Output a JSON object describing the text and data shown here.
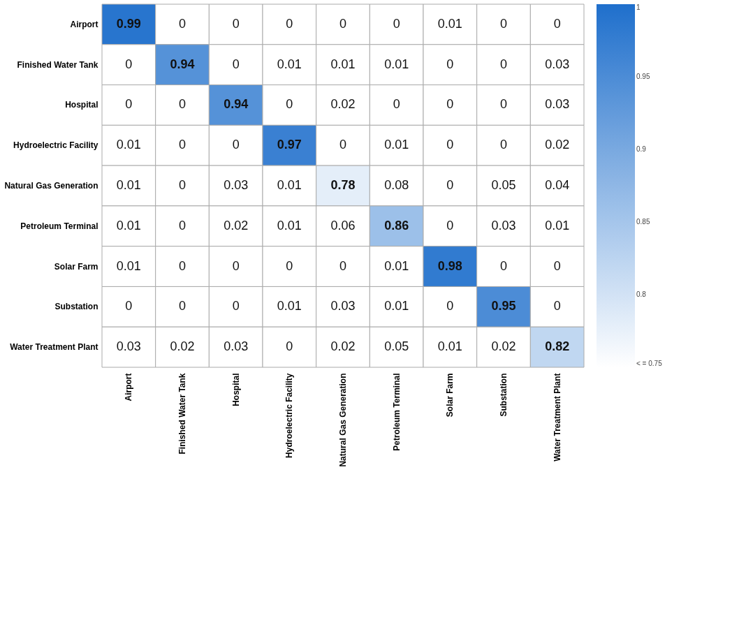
{
  "chart_data": {
    "type": "heatmap",
    "categories": [
      "Airport",
      "Finished Water Tank",
      "Hospital",
      "Hydroelectric Facility",
      "Natural Gas Generation",
      "Petroleum Terminal",
      "Solar Farm",
      "Substation",
      "Water Treatment Plant"
    ],
    "y_categories": [
      "Airport",
      "Finished Water Tank",
      "Hospital",
      "Hydroelectric Facility",
      "Natural Gas Generation",
      "Petroleum Terminal",
      "Solar Farm",
      "Substation",
      "Water Treatment Plant"
    ],
    "cells": [
      [
        0.99,
        0,
        0,
        0,
        0,
        0,
        0.01,
        0,
        0
      ],
      [
        0,
        0.94,
        0,
        0.01,
        0.01,
        0.01,
        0,
        0,
        0.03
      ],
      [
        0,
        0,
        0.94,
        0,
        0.02,
        0,
        0,
        0,
        0.03
      ],
      [
        0.01,
        0,
        0,
        0.97,
        0,
        0.01,
        0,
        0,
        0.02
      ],
      [
        0.01,
        0,
        0.03,
        0.01,
        0.78,
        0.08,
        0,
        0.05,
        0.04
      ],
      [
        0.01,
        0,
        0.02,
        0.01,
        0.06,
        0.86,
        0,
        0.03,
        0.01
      ],
      [
        0.01,
        0,
        0,
        0,
        0,
        0.01,
        0.98,
        0,
        0
      ],
      [
        0,
        0,
        0,
        0.01,
        0.03,
        0.01,
        0,
        0.95,
        0
      ],
      [
        0.03,
        0.02,
        0.03,
        0,
        0.02,
        0.05,
        0.01,
        0.02,
        0.82
      ]
    ],
    "data_labels": true,
    "clim": [
      0.75,
      1
    ],
    "cticks": [
      1,
      0.95,
      0.9,
      0.85,
      0.8,
      {
        "value": 0.75,
        "label": "< = 0.75"
      }
    ],
    "colors": [
      "#ffffff",
      "#1f6fcc"
    ]
  }
}
